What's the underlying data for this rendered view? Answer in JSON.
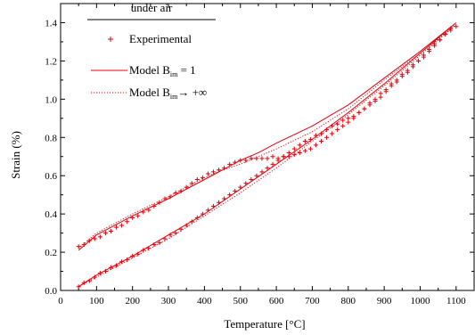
{
  "chart_data": {
    "type": "line",
    "xlabel": "Temperature [°C]",
    "ylabel": "Strain (%)",
    "xlim": [
      0,
      1150
    ],
    "ylim": [
      0,
      1.5
    ],
    "xticks": [
      0,
      100,
      200,
      300,
      400,
      500,
      600,
      700,
      800,
      900,
      1000,
      1100
    ],
    "yticks": [
      0.0,
      0.2,
      0.4,
      0.6,
      0.8,
      1.0,
      1.2,
      1.4
    ],
    "ytick_labels": [
      "0.0",
      "0.2",
      "0.4",
      "0.6",
      "0.8",
      "1.0",
      "1.2",
      "1.4"
    ],
    "grid": false,
    "legend": {
      "placement": "top-left",
      "title": "under air",
      "entries": {
        "experimental": "Experimental",
        "model1_prefix": "Model B",
        "model1_sub": "im",
        "model1_suffix": " = 1",
        "model2_prefix": "Model B",
        "model2_sub": "im",
        "model2_suffix": "→ +∞"
      }
    },
    "colors": {
      "series": "#e8000b",
      "axes": "#000000"
    },
    "series": [
      {
        "name": "Experimental",
        "style": "markers",
        "marker": "plus",
        "x": [
          50,
          65,
          80,
          95,
          110,
          125,
          140,
          155,
          170,
          185,
          200,
          215,
          230,
          245,
          260,
          275,
          290,
          305,
          320,
          335,
          350,
          365,
          380,
          395,
          410,
          425,
          440,
          455,
          470,
          485,
          500,
          515,
          530,
          545,
          560,
          575,
          590,
          605,
          620,
          635,
          650,
          665,
          680,
          695,
          710,
          725,
          740,
          755,
          770,
          785,
          800,
          815,
          830,
          845,
          860,
          875,
          890,
          905,
          920,
          935,
          950,
          965,
          980,
          995,
          1010,
          1025,
          1040,
          1055,
          1070,
          1085,
          1100,
          50,
          65,
          80,
          95,
          110,
          125,
          140,
          155,
          170,
          185,
          200,
          215,
          230,
          245,
          260,
          275,
          290,
          305,
          320,
          335,
          350,
          365,
          380,
          395,
          410,
          425,
          440,
          455,
          470,
          485,
          500,
          515,
          530,
          545,
          560,
          575,
          590,
          605,
          620,
          635,
          650,
          665,
          680,
          695,
          710,
          725,
          740,
          755,
          770,
          785,
          800,
          815,
          830,
          845,
          860,
          875,
          890,
          905,
          920,
          935,
          950,
          965,
          980,
          995,
          1010,
          1025,
          1040,
          1055,
          1070,
          1085
        ],
        "y": [
          0.02,
          0.04,
          0.05,
          0.07,
          0.09,
          0.1,
          0.12,
          0.13,
          0.15,
          0.16,
          0.18,
          0.19,
          0.21,
          0.22,
          0.24,
          0.25,
          0.27,
          0.29,
          0.3,
          0.32,
          0.34,
          0.36,
          0.38,
          0.4,
          0.42,
          0.44,
          0.46,
          0.48,
          0.5,
          0.52,
          0.54,
          0.56,
          0.58,
          0.6,
          0.62,
          0.64,
          0.66,
          0.68,
          0.7,
          0.72,
          0.74,
          0.76,
          0.78,
          0.79,
          0.81,
          0.82,
          0.84,
          0.86,
          0.87,
          0.89,
          0.9,
          0.91,
          0.93,
          0.95,
          0.97,
          0.99,
          1.01,
          1.04,
          1.07,
          1.09,
          1.12,
          1.14,
          1.17,
          1.2,
          1.22,
          1.25,
          1.28,
          1.31,
          1.34,
          1.36,
          1.38,
          0.23,
          0.24,
          0.26,
          0.27,
          0.28,
          0.3,
          0.31,
          0.33,
          0.34,
          0.36,
          0.38,
          0.39,
          0.41,
          0.42,
          0.44,
          0.46,
          0.48,
          0.49,
          0.51,
          0.52,
          0.54,
          0.56,
          0.58,
          0.59,
          0.61,
          0.62,
          0.63,
          0.64,
          0.66,
          0.67,
          0.68,
          0.68,
          0.69,
          0.69,
          0.69,
          0.69,
          0.7,
          0.69,
          0.7,
          0.7,
          0.71,
          0.72,
          0.73,
          0.74,
          0.76,
          0.78,
          0.8,
          0.82,
          0.84,
          0.86,
          0.88,
          0.9,
          0.93,
          0.95,
          0.98,
          1.0,
          1.03,
          1.05,
          1.08,
          1.1,
          1.13,
          1.15,
          1.18,
          1.2,
          1.23,
          1.26,
          1.29,
          1.31,
          1.34,
          1.37
        ]
      },
      {
        "name": "Model B_im = 1",
        "style": "solid",
        "x": [
          50,
          100,
          200,
          300,
          400,
          450,
          500,
          550,
          600,
          700,
          800,
          900,
          1000,
          1100,
          1100,
          1000,
          900,
          800,
          700,
          600,
          500,
          400,
          300,
          200,
          100,
          50
        ],
        "y": [
          0.21,
          0.29,
          0.39,
          0.48,
          0.58,
          0.63,
          0.68,
          0.72,
          0.77,
          0.86,
          0.97,
          1.11,
          1.25,
          1.4,
          1.4,
          1.24,
          1.08,
          0.93,
          0.79,
          0.66,
          0.53,
          0.4,
          0.29,
          0.18,
          0.08,
          0.02
        ]
      },
      {
        "name": "Model B_im → +∞",
        "style": "dotted",
        "x": [
          50,
          100,
          200,
          300,
          400,
          450,
          500,
          550,
          600,
          700,
          800,
          900,
          1000,
          1100,
          1100,
          1000,
          900,
          800,
          700,
          600,
          500,
          400,
          300,
          200,
          100,
          50
        ],
        "y": [
          0.22,
          0.3,
          0.4,
          0.49,
          0.59,
          0.63,
          0.66,
          0.7,
          0.74,
          0.83,
          0.95,
          1.1,
          1.24,
          1.39,
          1.39,
          1.23,
          1.07,
          0.92,
          0.78,
          0.64,
          0.51,
          0.39,
          0.27,
          0.17,
          0.07,
          0.02
        ]
      }
    ]
  }
}
